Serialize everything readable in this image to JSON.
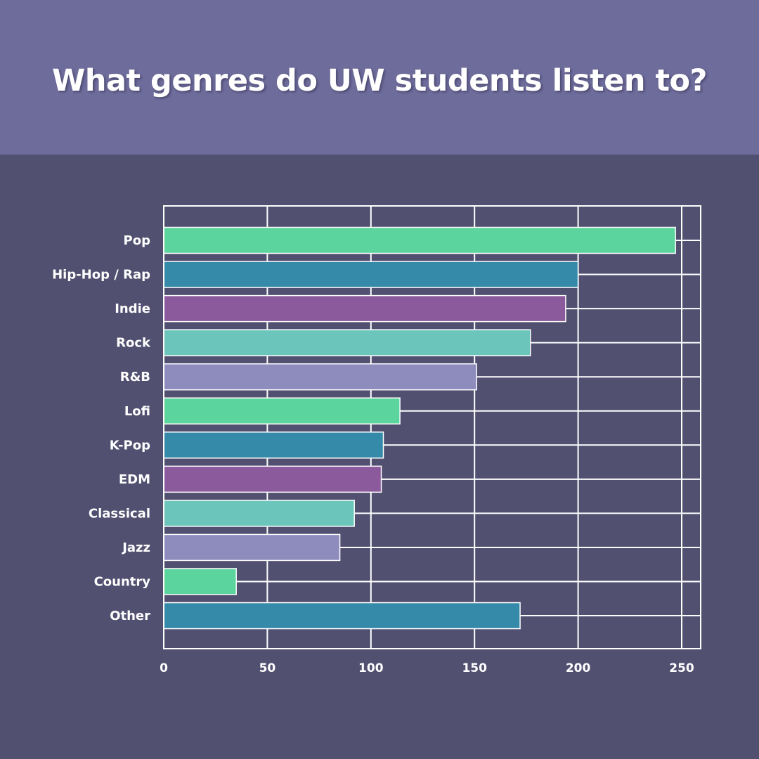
{
  "title": "What genres do UW students listen to?",
  "colors": {
    "header_bg": "#6e6c9b",
    "page_bg": "#525071",
    "grid": "#ffffff"
  },
  "chart_data": {
    "type": "bar",
    "orientation": "horizontal",
    "title": "",
    "xlabel": "",
    "ylabel": "",
    "categories": [
      "Pop",
      "Hip-Hop / Rap",
      "Indie",
      "Rock",
      "R&B",
      "Lofi",
      "K-Pop",
      "EDM",
      "Classical",
      "Jazz",
      "Country",
      "Other"
    ],
    "values": [
      247,
      200,
      194,
      177,
      151,
      114,
      106,
      105,
      92,
      85,
      35,
      172
    ],
    "bar_colors": [
      "#5cd49e",
      "#368aa9",
      "#8b5a9c",
      "#6cc5bb",
      "#8e8cbd",
      "#5cd49e",
      "#368aa9",
      "#8b5a9c",
      "#6cc5bb",
      "#8e8cbd",
      "#5cd49e",
      "#368aa9"
    ],
    "xlim": [
      0,
      260
    ],
    "xticks": [
      0,
      50,
      100,
      150,
      200,
      250
    ],
    "grid": true,
    "legend": "none"
  }
}
